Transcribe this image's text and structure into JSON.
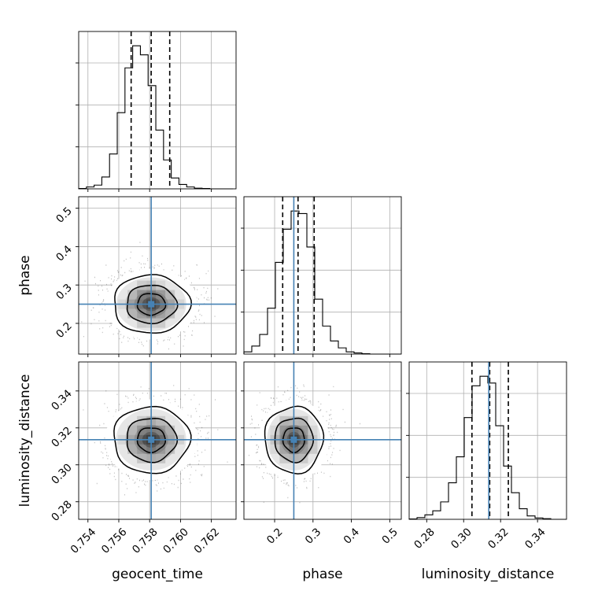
{
  "chart_data": {
    "type": "corner",
    "parameters": [
      {
        "key": "geocent_time",
        "label": "geocent_time",
        "range": [
          0.7534,
          0.7636
        ],
        "ticks": [
          0.754,
          0.756,
          0.758,
          0.76,
          0.762
        ],
        "tick_labels": [
          "0.754",
          "0.756",
          "0.758",
          "0.760",
          "0.762"
        ],
        "injection": 0.7581,
        "quantiles": {
          "q16": 0.7568,
          "median": 0.7581,
          "q84": 0.7593
        },
        "histogram": {
          "bin_edges_start": 0.7534,
          "bin_width": 0.0005,
          "counts": [
            0.1,
            0.6,
            1.2,
            3.8,
            11.2,
            24.5,
            38.9,
            46.0,
            43.1,
            33.2,
            18.9,
            9.3,
            3.5,
            1.4,
            0.6,
            0.2,
            0.1,
            0,
            0,
            0
          ]
        }
      },
      {
        "key": "phase",
        "label": "phase",
        "range": [
          0.12,
          0.53
        ],
        "ticks": [
          0.2,
          0.3,
          0.4,
          0.5
        ],
        "tick_labels": [
          "0.2",
          "0.3",
          "0.4",
          "0.5"
        ],
        "injection": 0.25,
        "quantiles": {
          "q16": 0.221,
          "median": 0.261,
          "q84": 0.303
        },
        "histogram": {
          "bin_edges_start": 0.12,
          "bin_width": 0.0205,
          "counts": [
            0.6,
            2.2,
            5.4,
            12.6,
            25.2,
            34.3,
            39.3,
            38.6,
            29.4,
            15.1,
            7.7,
            3.6,
            1.7,
            0.6,
            0.3,
            0.1,
            0,
            0,
            0,
            0
          ]
        }
      },
      {
        "key": "luminosity_distance",
        "label": "luminosity_distance",
        "range": [
          0.2705,
          0.3557
        ],
        "ticks": [
          0.28,
          0.3,
          0.32,
          0.34
        ],
        "tick_labels": [
          "0.28",
          "0.30",
          "0.32",
          "0.34"
        ],
        "injection": 0.3136,
        "quantiles": {
          "q16": 0.3045,
          "median": 0.3141,
          "q84": 0.3242
        },
        "histogram": {
          "bin_edges_start": 0.2705,
          "bin_width": 0.00426,
          "counts": [
            0.1,
            0.5,
            1.3,
            2.5,
            5.1,
            10.7,
            18.3,
            29.8,
            39.1,
            41.9,
            39.9,
            27.4,
            15.6,
            7.8,
            3.1,
            1.0,
            0.4,
            0.2,
            0,
            0
          ]
        }
      }
    ],
    "pairs": [
      {
        "x": "geocent_time",
        "y": "phase",
        "center": [
          0.7581,
          0.25
        ],
        "spread": [
          0.0013,
          0.04
        ]
      },
      {
        "x": "geocent_time",
        "y": "luminosity_distance",
        "center": [
          0.7581,
          0.3136
        ],
        "spread": [
          0.0013,
          0.0095
        ]
      },
      {
        "x": "phase",
        "y": "luminosity_distance",
        "center": [
          0.25,
          0.3136
        ],
        "spread": [
          0.04,
          0.0095
        ]
      }
    ],
    "colors": {
      "injection": "#4682b4",
      "hist": "#000000",
      "grid": "#b0b0b0",
      "scatter": "#000000"
    },
    "grid": true
  }
}
